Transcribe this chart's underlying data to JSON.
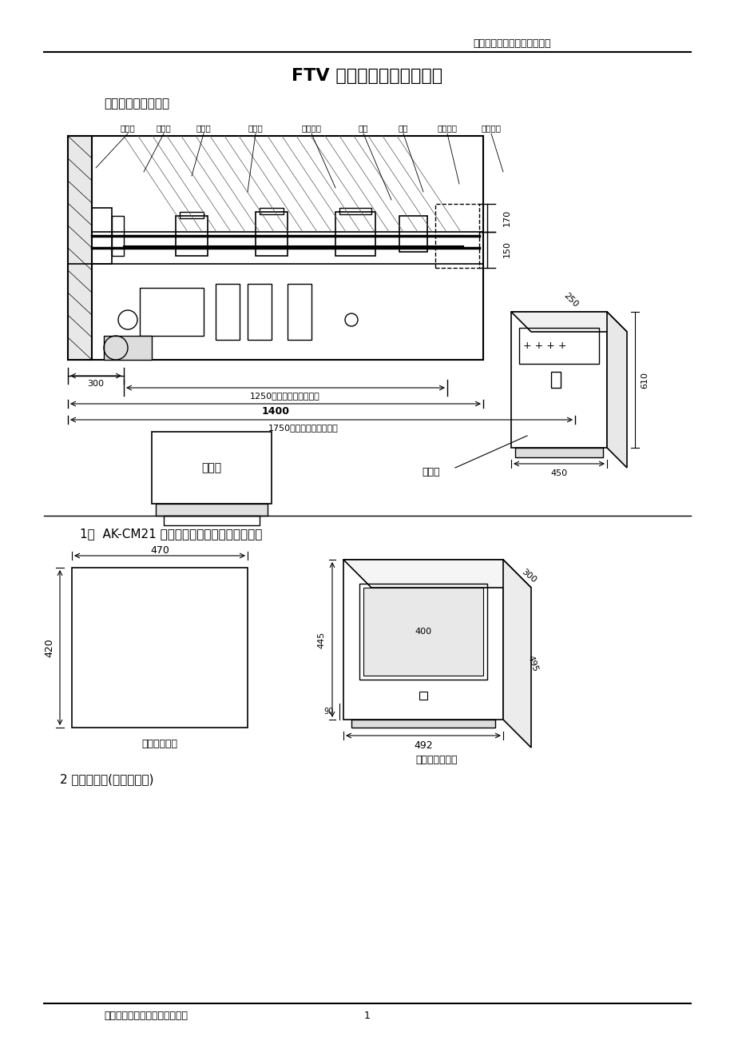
{
  "page_title": "FTV 炉膛火焰电视安装资料",
  "header_right": "宁夏石嘴山火焰电视安装资料",
  "section1_title": "炉膛火焰电视系统图",
  "component_labels": [
    "水冷壁",
    "支撑板",
    "连接板",
    "保护套",
    "输像系统",
    "小车",
    "支架",
    "电动推杆",
    "退出炉膛"
  ],
  "dim_170": "170",
  "dim_150": "150",
  "dim_300": "300",
  "dim_1250": "1250进入时所占最大空间",
  "dim_1400": "1400",
  "dim_1750": "1750退出后所占最大空间",
  "dim_250": "250",
  "dim_610": "610",
  "dim_450": "450",
  "monitor_label": "监视器",
  "cabinet_label": "控制柜",
  "section2_title": "1、  AK-CM21 纯平监视器外形尺寸及开孔尺寸",
  "dim_470": "470",
  "dim_420": "420",
  "dim_445": "445",
  "dim_90": "90",
  "dim_400": "400",
  "dim_300b": "300",
  "dim_495": "495",
  "dim_492": "492",
  "top_panel_label": "上盘开孔尺寸",
  "monitor_dim_label": "监视器外型尺寸",
  "section3_title": "2 电器控制柜(在安装现场)",
  "footer_company": "铁岭铁光仪器仪表有限责任公司",
  "footer_page": "1",
  "bg_color": "#ffffff",
  "line_color": "#000000"
}
